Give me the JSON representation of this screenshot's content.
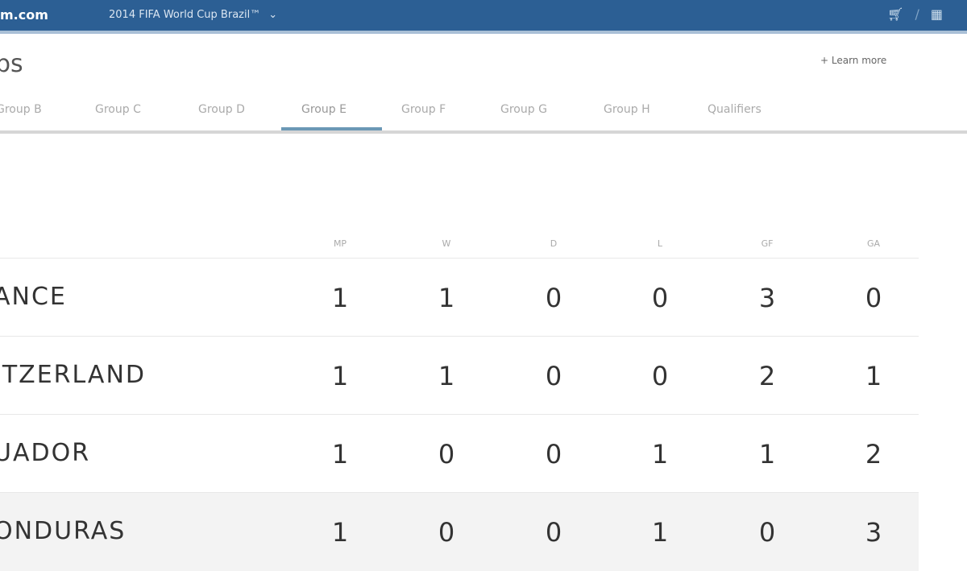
{
  "topbar": {
    "site": "m.com",
    "event": "2014 FIFA World Cup Brazil™",
    "event_chevron": "⌄",
    "icons": [
      "cart-icon",
      "grid-icon"
    ]
  },
  "page": {
    "title": "ps",
    "more_link": "+ Learn more"
  },
  "tabs": [
    {
      "label": "Group B"
    },
    {
      "label": "Group C"
    },
    {
      "label": "Group D"
    },
    {
      "label": "Group E",
      "active": true
    },
    {
      "label": "Group F"
    },
    {
      "label": "Group G"
    },
    {
      "label": "Group H"
    },
    {
      "label": "Qualifiers"
    }
  ],
  "table": {
    "columns": [
      "MP",
      "W",
      "D",
      "L",
      "GF",
      "GA"
    ],
    "rows": [
      {
        "team": "ANCE",
        "values": [
          "1",
          "1",
          "0",
          "0",
          "3",
          "0"
        ]
      },
      {
        "team": "ITZERLAND",
        "values": [
          "1",
          "1",
          "0",
          "0",
          "2",
          "1"
        ]
      },
      {
        "team": "UADOR",
        "values": [
          "1",
          "0",
          "0",
          "1",
          "1",
          "2"
        ]
      },
      {
        "team": "ONDURAS",
        "values": [
          "1",
          "0",
          "0",
          "1",
          "0",
          "3"
        ]
      }
    ]
  },
  "colors": {
    "topbar": "#2c5f94",
    "active_tab_underline": "#6b98b5"
  }
}
